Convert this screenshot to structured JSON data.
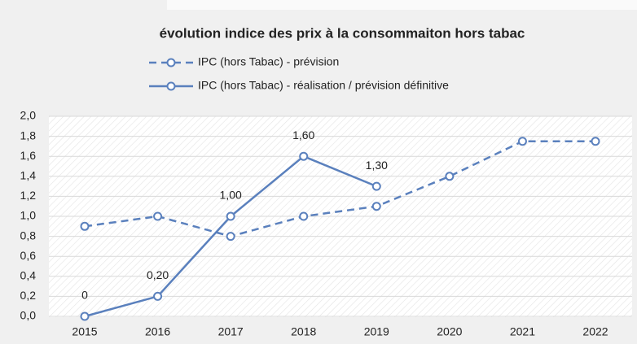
{
  "chart_data": {
    "type": "line",
    "title": "évolution indice des prix à la consommaiton hors tabac",
    "categories": [
      "2015",
      "2016",
      "2017",
      "2018",
      "2019",
      "2020",
      "2021",
      "2022"
    ],
    "series": [
      {
        "name": "IPC (hors Tabac) - prévision",
        "color": "#5a80bd",
        "dashed": true,
        "values": [
          0.9,
          1.0,
          0.8,
          1.0,
          1.1,
          1.4,
          1.75,
          1.75
        ]
      },
      {
        "name": "IPC (hors Tabac) - réalisation / prévision définitive",
        "color": "#5a80bd",
        "dashed": false,
        "values": [
          0,
          0.2,
          1.0,
          1.6,
          1.3,
          null,
          null,
          null
        ],
        "value_labels": [
          "0",
          "0,20",
          "1,00",
          "1,60",
          "1,30",
          null,
          null,
          null
        ]
      }
    ],
    "ylim": [
      0,
      2
    ],
    "yticks": [
      {
        "value": 0,
        "label": "0,0"
      },
      {
        "value": 0.2,
        "label": "0,2"
      },
      {
        "value": 0.4,
        "label": "0,4"
      },
      {
        "value": 0.6,
        "label": "0,6"
      },
      {
        "value": 0.8,
        "label": "0,8"
      },
      {
        "value": 1.0,
        "label": "1,0"
      },
      {
        "value": 1.2,
        "label": "1,2"
      },
      {
        "value": 1.4,
        "label": "1,4"
      },
      {
        "value": 1.6,
        "label": "1,6"
      },
      {
        "value": 1.8,
        "label": "1,8"
      },
      {
        "value": 2.0,
        "label": "2,0"
      }
    ],
    "grid": true
  }
}
